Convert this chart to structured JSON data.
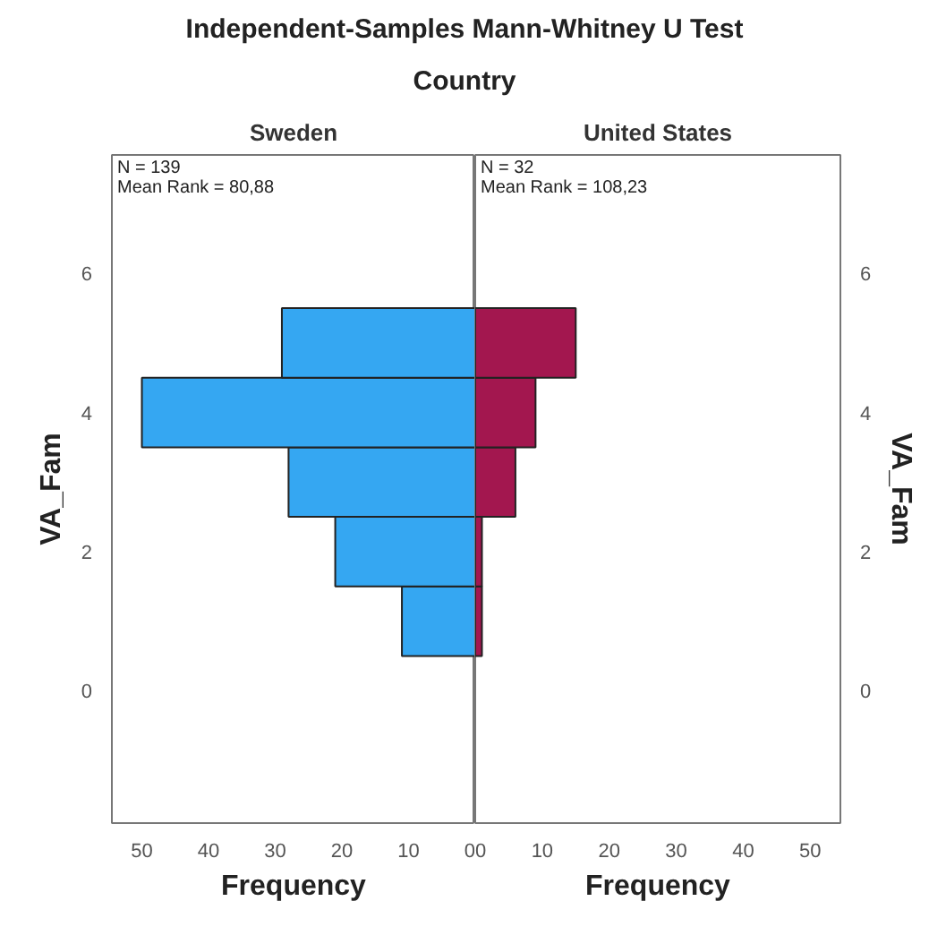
{
  "chart_data": [
    {
      "type": "histogram",
      "orientation": "horizontal",
      "title": "Sweden",
      "xlabel": "Frequency",
      "ylabel": "VA_Fam",
      "annotations": [
        "Independent-Samples Mann-Whitney U Test",
        "Country",
        "N = 139",
        "Mean Rank = 80,88"
      ],
      "bins": [
        0.5,
        1.5,
        2.5,
        3.5,
        4.5,
        5.5
      ],
      "values": [
        11,
        21,
        28,
        50,
        29
      ],
      "color": "#35a7f2",
      "xlim": [
        54.5,
        0
      ],
      "xticks": [
        50,
        40,
        30,
        20,
        10,
        0
      ],
      "ylim": [
        -1.9,
        7.7
      ],
      "yticks": [
        0,
        2,
        4,
        6
      ],
      "grid": false
    },
    {
      "type": "histogram",
      "orientation": "horizontal",
      "title": "United States",
      "xlabel": "Frequency",
      "ylabel": "VA_Fam",
      "annotations": [
        "N = 32",
        "Mean Rank = 108,23"
      ],
      "bins": [
        0.5,
        1.5,
        2.5,
        3.5,
        4.5,
        5.5
      ],
      "values": [
        1,
        1,
        6,
        9,
        15
      ],
      "color": "#a3174f",
      "xlim": [
        0,
        54.5
      ],
      "xticks": [
        0,
        10,
        20,
        30,
        40,
        50
      ],
      "ylim": [
        -1.9,
        7.7
      ],
      "yticks": [
        0,
        2,
        4,
        6
      ],
      "grid": false
    }
  ]
}
